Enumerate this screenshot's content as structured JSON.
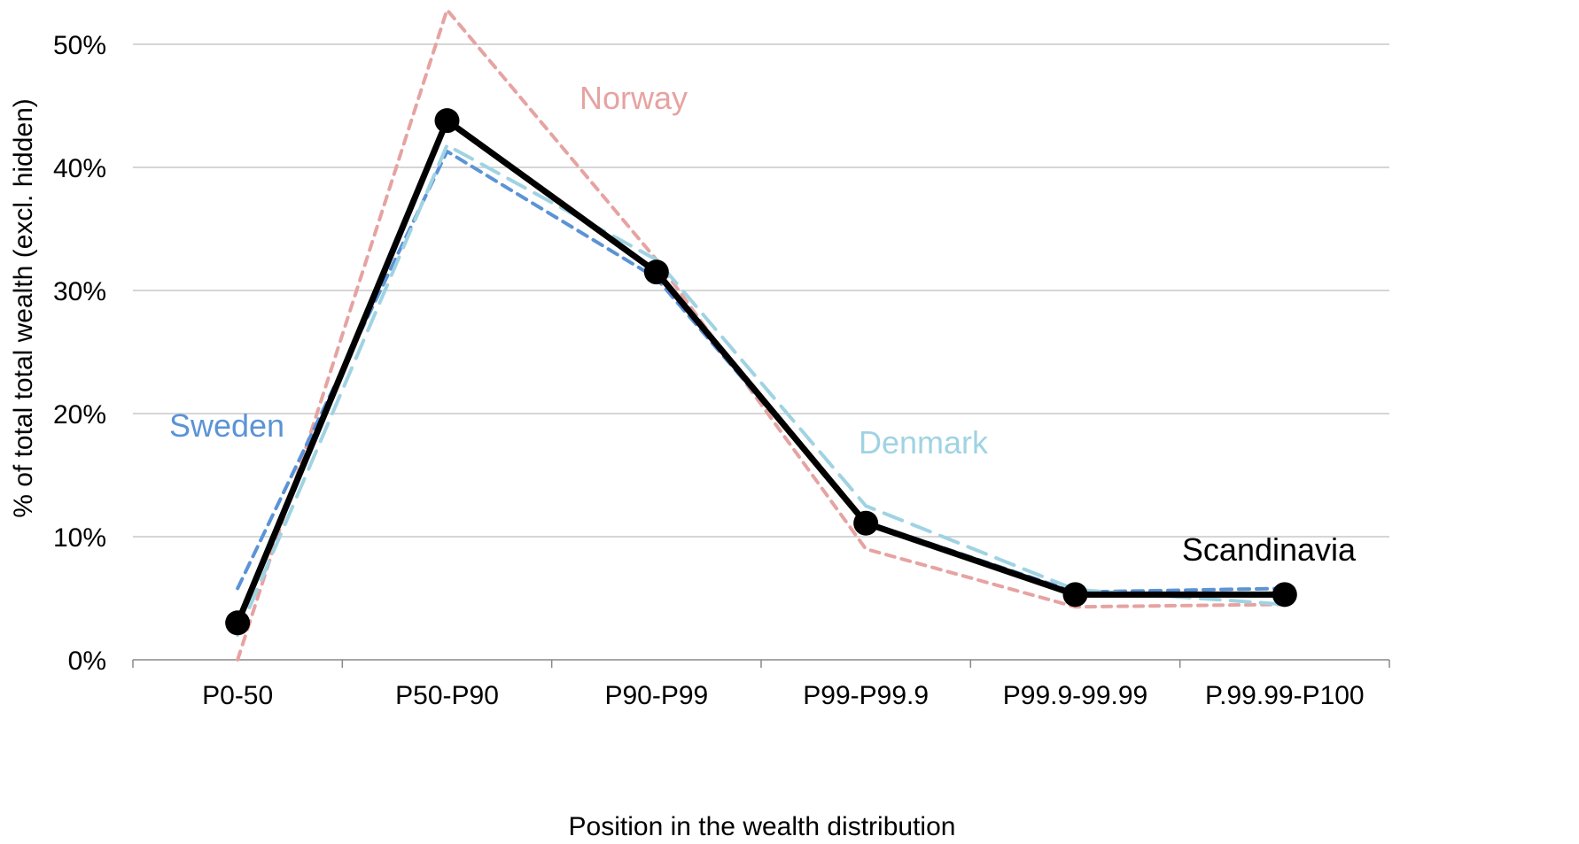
{
  "chart_data": {
    "type": "line",
    "categories": [
      "P0-50",
      "P50-P90",
      "P90-P99",
      "P99-P99.9",
      "P99.9-99.99",
      "P.99.99-P100"
    ],
    "xlabel": "Position in the wealth distribution",
    "ylabel": "% of total total wealth (excl. hidden)",
    "ylim": [
      0,
      50
    ],
    "yticks": [
      0,
      10,
      20,
      30,
      40,
      50
    ],
    "ytick_labels": [
      "0%",
      "10%",
      "20%",
      "30%",
      "40%",
      "50%"
    ],
    "grid": true,
    "legend": "inline labels",
    "series": [
      {
        "name": "Norway",
        "color": "#e6a3a1",
        "style": "dotted",
        "values": [
          0,
          52.8,
          32.5,
          9.0,
          4.3,
          4.5
        ]
      },
      {
        "name": "Sweden",
        "color": "#5b93d6",
        "style": "dashed",
        "values": [
          5.8,
          41.3,
          31.0,
          11.2,
          5.5,
          5.8
        ]
      },
      {
        "name": "Denmark",
        "color": "#9fd3e3",
        "style": "long-dash",
        "values": [
          2.0,
          41.8,
          32.5,
          12.5,
          5.7,
          4.5
        ]
      },
      {
        "name": "Scandinavia",
        "color": "#000000",
        "style": "solid-markers",
        "values": [
          3.0,
          43.8,
          31.5,
          11.1,
          5.3,
          5.3
        ]
      }
    ]
  }
}
